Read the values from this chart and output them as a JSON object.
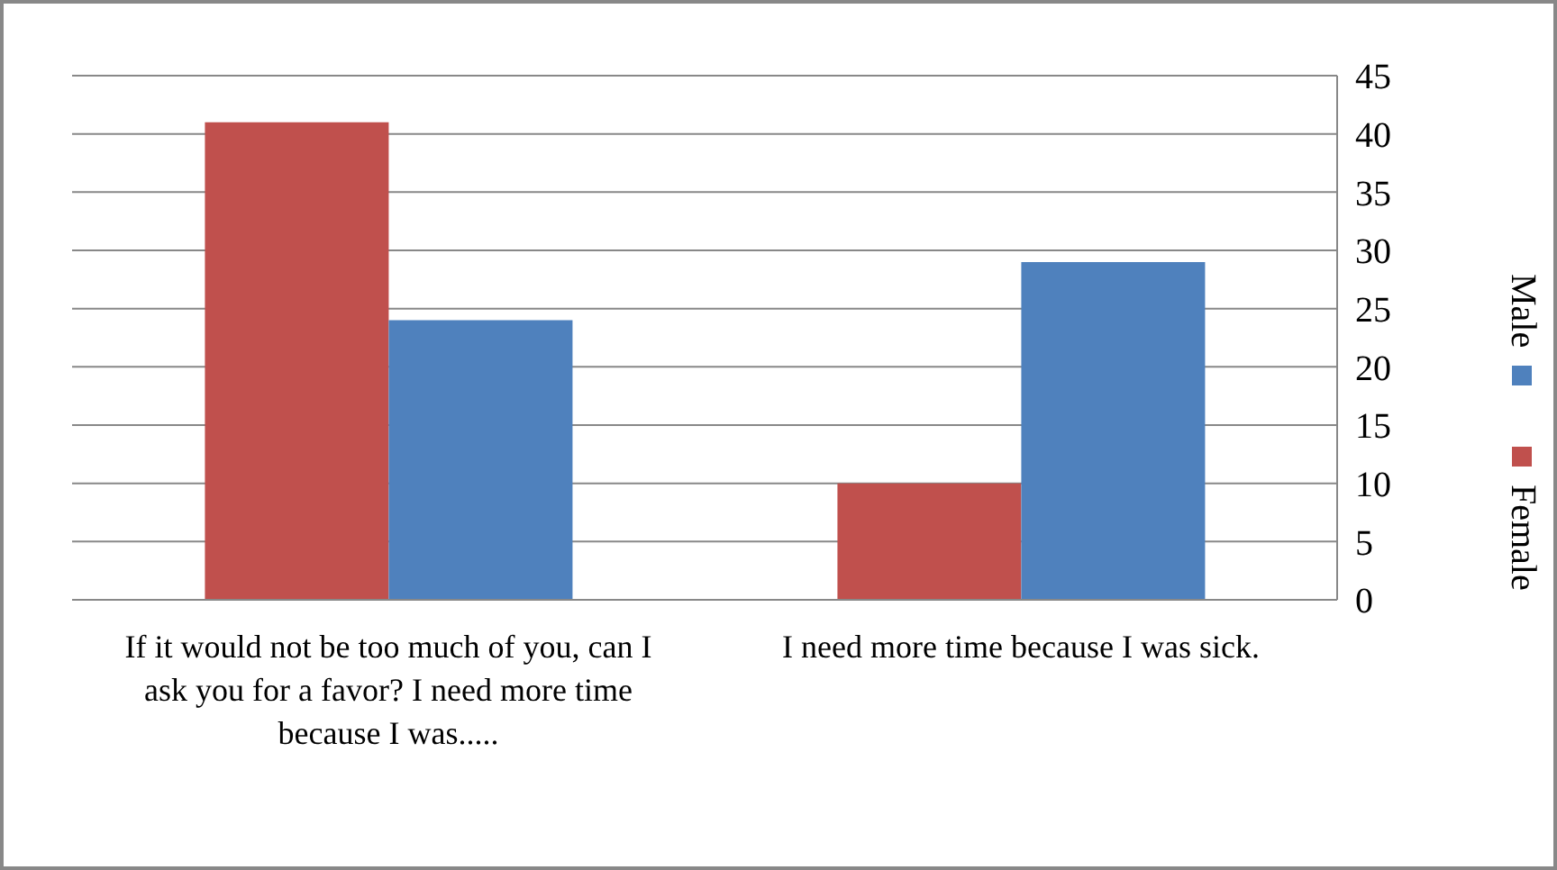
{
  "chart_data": {
    "type": "bar",
    "categories": [
      "If it would not be too much of you, can I ask you for a favor? I need more time because I was.....",
      "I need more time because I was sick."
    ],
    "series": [
      {
        "name": "Female",
        "color": "#c0504d",
        "values": [
          41,
          10
        ]
      },
      {
        "name": "Male",
        "color": "#4f81bd",
        "values": [
          24,
          29
        ]
      }
    ],
    "ylim": [
      0,
      45
    ],
    "yticks": [
      0,
      5,
      10,
      15,
      20,
      25,
      30,
      35,
      40,
      45
    ],
    "grid": "y",
    "legend": "right"
  }
}
